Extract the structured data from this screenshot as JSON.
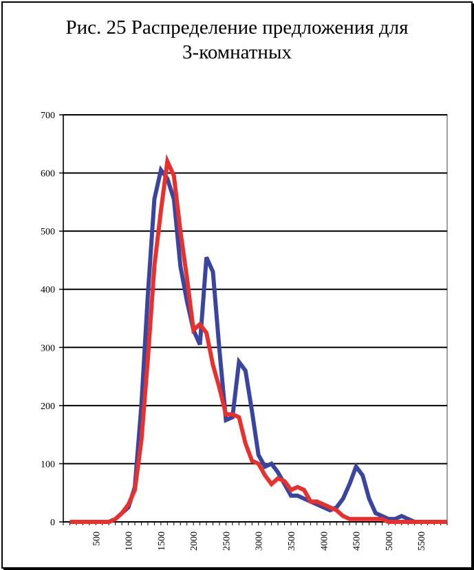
{
  "title_line1": "Рис. 25 Распределение предложения для",
  "title_line2": "3-комнатных",
  "colors": {
    "series_blue": "#3a45a0",
    "series_red": "#e8302c",
    "grid": "#000000"
  },
  "chart_data": {
    "type": "line",
    "title": "Рис. 25 Распределение предложения для 3-комнатных",
    "xlabel": "",
    "ylabel": "",
    "ylim": [
      0,
      700
    ],
    "xlim": [
      0,
      5900
    ],
    "yticks": [
      0,
      100,
      200,
      300,
      400,
      500,
      600,
      700
    ],
    "xticks": [
      500,
      1000,
      1500,
      2000,
      2500,
      3000,
      3500,
      4000,
      4500,
      5000,
      5500
    ],
    "xtick_labels": [
      "500",
      "1000",
      "1500",
      "2000",
      "2500",
      "3000",
      "3500",
      "4000",
      "4500",
      "5000",
      "5500"
    ],
    "grid": "horizontal",
    "legend": "none",
    "series": [
      {
        "color": "#3a45a0",
        "x": [
          100,
          200,
          300,
          400,
          500,
          600,
          700,
          800,
          900,
          1000,
          1100,
          1200,
          1300,
          1400,
          1500,
          1600,
          1700,
          1800,
          1900,
          2000,
          2100,
          2200,
          2300,
          2400,
          2500,
          2600,
          2700,
          2800,
          2900,
          3000,
          3100,
          3200,
          3300,
          3400,
          3500,
          3600,
          3700,
          3800,
          3900,
          4000,
          4100,
          4200,
          4300,
          4400,
          4500,
          4600,
          4700,
          4800,
          4900,
          5000,
          5100,
          5200,
          5300,
          5400,
          5500,
          5600,
          5700,
          5800,
          5900
        ],
        "y": [
          0,
          0,
          0,
          0,
          0,
          0,
          0,
          5,
          15,
          25,
          60,
          200,
          390,
          555,
          605,
          590,
          555,
          440,
          380,
          330,
          305,
          455,
          430,
          295,
          175,
          180,
          275,
          260,
          190,
          115,
          95,
          100,
          85,
          65,
          45,
          45,
          40,
          35,
          30,
          25,
          20,
          25,
          40,
          65,
          95,
          80,
          40,
          15,
          10,
          5,
          5,
          10,
          5,
          0,
          0,
          0,
          0,
          0,
          0
        ]
      },
      {
        "color": "#e8302c",
        "x": [
          100,
          200,
          300,
          400,
          500,
          600,
          700,
          800,
          900,
          1000,
          1100,
          1200,
          1300,
          1400,
          1500,
          1600,
          1700,
          1800,
          1900,
          2000,
          2100,
          2200,
          2300,
          2400,
          2500,
          2600,
          2700,
          2800,
          2900,
          3000,
          3100,
          3200,
          3300,
          3400,
          3500,
          3600,
          3700,
          3800,
          3900,
          4000,
          4100,
          4200,
          4300,
          4400,
          4500,
          4600,
          4700,
          4800,
          4900,
          5000,
          5100,
          5200,
          5300,
          5400,
          5500,
          5600,
          5700,
          5800,
          5900
        ],
        "y": [
          0,
          0,
          0,
          0,
          0,
          0,
          0,
          5,
          15,
          30,
          55,
          140,
          280,
          440,
          535,
          620,
          595,
          500,
          420,
          330,
          340,
          325,
          270,
          230,
          185,
          185,
          180,
          135,
          105,
          100,
          80,
          65,
          75,
          70,
          55,
          60,
          55,
          35,
          35,
          30,
          25,
          20,
          10,
          5,
          5,
          5,
          5,
          5,
          5,
          0,
          0,
          0,
          0,
          0,
          0,
          0,
          0,
          0,
          0
        ]
      }
    ]
  }
}
